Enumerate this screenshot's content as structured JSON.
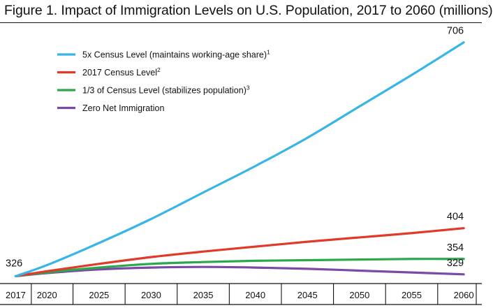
{
  "chart_data": {
    "type": "line",
    "title": "Figure 1. Impact of Immigration Levels on U.S. Population, 2017 to 2060 (millions)",
    "xlabel": "",
    "ylabel": "",
    "x_tick_labels": [
      "2017",
      "2020",
      "2025",
      "2030",
      "2035",
      "2040",
      "2045",
      "2050",
      "2055",
      "2060"
    ],
    "x_tick_values": [
      2017,
      2020,
      2025,
      2030,
      2035,
      2040,
      2045,
      2050,
      2055,
      2060
    ],
    "xlim": [
      2016.5,
      2061.2
    ],
    "ylim": [
      314,
      734
    ],
    "grid": false,
    "legend_position": "top-left",
    "start_label": "326",
    "series": [
      {
        "name": "5x Census Level (maintains working-age share)",
        "superscript": "1",
        "color": "#36b5e6",
        "end_label": "706",
        "x": [
          2017,
          2020,
          2025,
          2030,
          2035,
          2040,
          2045,
          2050,
          2055,
          2060
        ],
        "values": [
          326,
          344,
          380,
          419,
          462,
          505,
          551,
          602,
          653,
          706
        ]
      },
      {
        "name": "2017 Census Level",
        "superscript": "2",
        "color": "#e03a2b",
        "end_label": "404",
        "x": [
          2017,
          2020,
          2025,
          2030,
          2035,
          2040,
          2045,
          2050,
          2055,
          2060
        ],
        "values": [
          326,
          334,
          346,
          357,
          366,
          374,
          382,
          389,
          396,
          404
        ]
      },
      {
        "name": "1/3 of Census Level (stabilizes population)",
        "superscript": "3",
        "color": "#2aa84a",
        "end_label": "354",
        "x": [
          2017,
          2020,
          2025,
          2030,
          2035,
          2040,
          2045,
          2050,
          2055,
          2060
        ],
        "values": [
          326,
          332,
          340,
          346,
          349,
          351,
          352,
          353,
          354,
          354
        ]
      },
      {
        "name": "Zero Net Immigration",
        "superscript": "",
        "color": "#7a4aa6",
        "end_label": "329",
        "x": [
          2017,
          2020,
          2025,
          2030,
          2035,
          2040,
          2045,
          2050,
          2055,
          2060
        ],
        "values": [
          326,
          331,
          337,
          340,
          341,
          340,
          338,
          335,
          332,
          329
        ]
      }
    ]
  }
}
